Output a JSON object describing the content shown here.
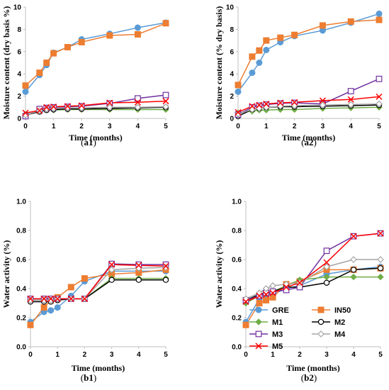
{
  "chart_data": [
    {
      "panel": "(a1)",
      "type": "line",
      "xlabel": "Time (months)",
      "ylabel": "Moisture content (dry basis %)",
      "ylim": [
        0,
        10
      ],
      "xlim": [
        0,
        5
      ],
      "yticks": [
        0,
        2,
        4,
        6,
        8,
        10
      ],
      "xticks": [
        0,
        1,
        2,
        3,
        4,
        5
      ],
      "grid": false,
      "series": [
        {
          "name": "GRE",
          "x": [
            0,
            0.5,
            0.75,
            1,
            1.5,
            2,
            3,
            4,
            5
          ],
          "values": [
            2.4,
            3.9,
            4.8,
            5.9,
            6.4,
            7.1,
            7.6,
            8.15,
            8.6
          ]
        },
        {
          "name": "IN50",
          "x": [
            0,
            0.5,
            0.75,
            1,
            1.5,
            2,
            3,
            4,
            5
          ],
          "values": [
            2.95,
            4.1,
            5.0,
            5.85,
            6.4,
            6.85,
            7.45,
            7.55,
            8.55
          ]
        },
        {
          "name": "M1",
          "x": [
            0,
            0.5,
            0.75,
            1,
            1.5,
            2,
            3,
            4,
            5
          ],
          "values": [
            0.35,
            0.65,
            0.75,
            0.75,
            0.8,
            0.8,
            0.8,
            0.8,
            0.8
          ]
        },
        {
          "name": "M2",
          "x": [
            0,
            0.5,
            0.75,
            1,
            1.5,
            2,
            3,
            4,
            5
          ],
          "values": [
            0.3,
            0.6,
            0.75,
            0.8,
            0.85,
            0.85,
            0.9,
            0.95,
            1.0
          ]
        },
        {
          "name": "M3",
          "x": [
            0,
            0.5,
            0.75,
            1,
            1.5,
            2,
            3,
            4,
            5
          ],
          "values": [
            0.2,
            0.85,
            0.95,
            1.0,
            1.05,
            1.1,
            1.35,
            1.8,
            2.1
          ]
        },
        {
          "name": "M4",
          "x": [
            0,
            0.5,
            0.75,
            1,
            1.5,
            2,
            3,
            4,
            5
          ],
          "values": [
            0.3,
            0.7,
            0.85,
            0.9,
            0.95,
            0.95,
            1.0,
            1.0,
            1.05
          ]
        },
        {
          "name": "M5",
          "x": [
            0,
            0.5,
            0.75,
            1,
            1.5,
            2,
            3,
            4,
            5
          ],
          "values": [
            0.5,
            0.7,
            1.0,
            1.05,
            1.1,
            1.15,
            1.4,
            1.45,
            1.55
          ]
        }
      ]
    },
    {
      "panel": "(a2)",
      "type": "line",
      "xlabel": "Time (months)",
      "ylabel": "Moisture content (% dry basis)",
      "ylim": [
        0,
        10
      ],
      "xlim": [
        0,
        5
      ],
      "yticks": [
        0,
        2,
        4,
        6,
        8,
        10
      ],
      "xticks": [
        0,
        1,
        2,
        3,
        4,
        5
      ],
      "grid": false,
      "series": [
        {
          "name": "GRE",
          "x": [
            0,
            0.5,
            0.75,
            1,
            1.5,
            2,
            3,
            4,
            5
          ],
          "values": [
            2.4,
            4.1,
            5.0,
            6.15,
            6.85,
            7.4,
            7.9,
            8.6,
            9.4
          ]
        },
        {
          "name": "IN50",
          "x": [
            0,
            0.5,
            0.75,
            1,
            1.5,
            2,
            3,
            4,
            5
          ],
          "values": [
            3.0,
            5.55,
            6.1,
            7.0,
            7.25,
            7.5,
            8.35,
            8.7,
            8.85
          ]
        },
        {
          "name": "M1",
          "x": [
            0,
            0.5,
            0.75,
            1,
            1.5,
            2,
            3,
            4,
            5
          ],
          "values": [
            0.5,
            0.65,
            0.75,
            0.75,
            0.8,
            0.8,
            0.9,
            0.95,
            1.0
          ]
        },
        {
          "name": "M2",
          "x": [
            0,
            0.5,
            0.75,
            1,
            1.5,
            2,
            3,
            4,
            5
          ],
          "values": [
            0.2,
            0.8,
            0.9,
            1.0,
            1.05,
            1.05,
            1.1,
            1.15,
            1.2
          ]
        },
        {
          "name": "M3",
          "x": [
            0,
            0.5,
            0.75,
            1,
            1.5,
            2,
            3,
            4,
            5
          ],
          "values": [
            0.35,
            1.0,
            1.15,
            1.25,
            1.35,
            1.4,
            1.3,
            2.45,
            3.55
          ]
        },
        {
          "name": "M4",
          "x": [
            0,
            0.5,
            0.75,
            1,
            1.5,
            2,
            3,
            4,
            5
          ],
          "values": [
            0.4,
            0.8,
            0.9,
            1.0,
            1.1,
            1.15,
            1.2,
            1.25,
            1.3
          ]
        },
        {
          "name": "M5",
          "x": [
            0,
            0.5,
            0.75,
            1,
            1.5,
            2,
            3,
            4,
            5
          ],
          "values": [
            0.55,
            1.1,
            1.2,
            1.3,
            1.4,
            1.45,
            1.6,
            1.7,
            1.95
          ]
        }
      ]
    },
    {
      "panel": "(b1)",
      "type": "line",
      "xlabel": "Time (months)",
      "ylabel": "Water activity (%)",
      "ylim": [
        0,
        1.0
      ],
      "xlim": [
        0,
        5
      ],
      "yticks": [
        0,
        0.2,
        0.4,
        0.6,
        0.8,
        1.0
      ],
      "xticks": [
        0,
        1,
        2,
        3,
        4,
        5
      ],
      "grid": false,
      "series": [
        {
          "name": "GRE",
          "x": [
            0,
            0.5,
            0.75,
            1,
            1.5,
            2,
            3,
            4,
            5
          ],
          "values": [
            0.17,
            0.24,
            0.25,
            0.27,
            0.35,
            0.45,
            0.52,
            0.52,
            0.52
          ]
        },
        {
          "name": "IN50",
          "x": [
            0,
            0.5,
            0.75,
            1,
            1.5,
            2,
            3,
            4,
            5
          ],
          "values": [
            0.15,
            0.27,
            0.32,
            0.34,
            0.41,
            0.47,
            0.5,
            0.51,
            0.53
          ]
        },
        {
          "name": "M1",
          "x": [
            0,
            0.5,
            0.75,
            1,
            1.5,
            2,
            3,
            4,
            5
          ],
          "values": [
            0.32,
            0.32,
            0.32,
            0.33,
            0.33,
            0.33,
            0.47,
            0.47,
            0.47
          ]
        },
        {
          "name": "M2",
          "x": [
            0,
            0.5,
            0.75,
            1,
            1.5,
            2,
            3,
            4,
            5
          ],
          "values": [
            0.31,
            0.31,
            0.31,
            0.32,
            0.33,
            0.33,
            0.46,
            0.46,
            0.46
          ]
        },
        {
          "name": "M3",
          "x": [
            0,
            0.5,
            0.75,
            1,
            1.5,
            2,
            3,
            4,
            5
          ],
          "values": [
            0.33,
            0.33,
            0.33,
            0.33,
            0.33,
            0.33,
            0.57,
            0.565,
            0.565
          ]
        },
        {
          "name": "M4",
          "x": [
            0,
            0.5,
            0.75,
            1,
            1.5,
            2,
            3,
            4,
            5
          ],
          "values": [
            0.32,
            0.32,
            0.32,
            0.33,
            0.33,
            0.33,
            0.53,
            0.54,
            0.545
          ]
        },
        {
          "name": "M5",
          "x": [
            0,
            0.5,
            0.75,
            1,
            1.5,
            2,
            3,
            4,
            5
          ],
          "values": [
            0.33,
            0.33,
            0.33,
            0.33,
            0.33,
            0.33,
            0.565,
            0.56,
            0.555
          ]
        }
      ]
    },
    {
      "panel": "(b2)",
      "type": "line",
      "xlabel": "Time (months)",
      "ylabel": "Water activity (%)",
      "ylim": [
        0,
        1.0
      ],
      "xlim": [
        0,
        5
      ],
      "yticks": [
        0,
        0.2,
        0.4,
        0.6,
        0.8,
        1.0
      ],
      "xticks": [
        0,
        1,
        2,
        3,
        4,
        5
      ],
      "grid": false,
      "legend": "bottom",
      "series": [
        {
          "name": "GRE",
          "x": [
            0,
            0.5,
            0.75,
            1,
            1.5,
            2,
            3,
            4,
            5
          ],
          "values": [
            0.17,
            0.33,
            0.35,
            0.36,
            0.4,
            0.42,
            0.5,
            0.53,
            0.55
          ]
        },
        {
          "name": "IN50",
          "x": [
            0,
            0.5,
            0.75,
            1,
            1.5,
            2,
            3,
            4,
            5
          ],
          "values": [
            0.15,
            0.3,
            0.32,
            0.34,
            0.43,
            0.45,
            0.53,
            0.53,
            0.54
          ]
        },
        {
          "name": "M1",
          "x": [
            0,
            0.5,
            0.75,
            1,
            1.5,
            2,
            3,
            4,
            5
          ],
          "values": [
            0.3,
            0.35,
            0.37,
            0.38,
            0.42,
            0.46,
            0.48,
            0.48,
            0.48
          ]
        },
        {
          "name": "M2",
          "x": [
            0,
            0.5,
            0.75,
            1,
            1.5,
            2,
            3,
            4,
            5
          ],
          "values": [
            0.32,
            0.36,
            0.37,
            0.38,
            0.41,
            0.41,
            0.44,
            0.53,
            0.54
          ]
        },
        {
          "name": "M3",
          "x": [
            0,
            0.5,
            0.75,
            1,
            1.5,
            2,
            3,
            4,
            5
          ],
          "values": [
            0.32,
            0.35,
            0.37,
            0.38,
            0.39,
            0.41,
            0.66,
            0.76,
            0.78
          ]
        },
        {
          "name": "M4",
          "x": [
            0,
            0.5,
            0.75,
            1,
            1.5,
            2,
            3,
            4,
            5
          ],
          "values": [
            0.33,
            0.37,
            0.4,
            0.42,
            0.43,
            0.44,
            0.55,
            0.6,
            0.6
          ]
        },
        {
          "name": "M5",
          "x": [
            0,
            0.5,
            0.75,
            1,
            1.5,
            2,
            3,
            4,
            5
          ],
          "values": [
            0.31,
            0.35,
            0.36,
            0.37,
            0.41,
            0.44,
            0.58,
            0.76,
            0.78
          ]
        }
      ]
    }
  ],
  "series_style": {
    "GRE": {
      "color": "#5b9bd5",
      "marker": "circle-filled"
    },
    "IN50": {
      "color": "#ed7d31",
      "marker": "square-filled"
    },
    "M1": {
      "color": "#70ad47",
      "marker": "diamond-filled"
    },
    "M2": {
      "color": "#000000",
      "marker": "circle-open"
    },
    "M3": {
      "color": "#7030a0",
      "marker": "square-open"
    },
    "M4": {
      "color": "#a5a5a5",
      "marker": "diamond-open"
    },
    "M5": {
      "color": "#ff0000",
      "marker": "x"
    }
  },
  "legend": {
    "entries": [
      "GRE",
      "IN50",
      "M1",
      "M2",
      "M3",
      "M4",
      "M5"
    ]
  }
}
